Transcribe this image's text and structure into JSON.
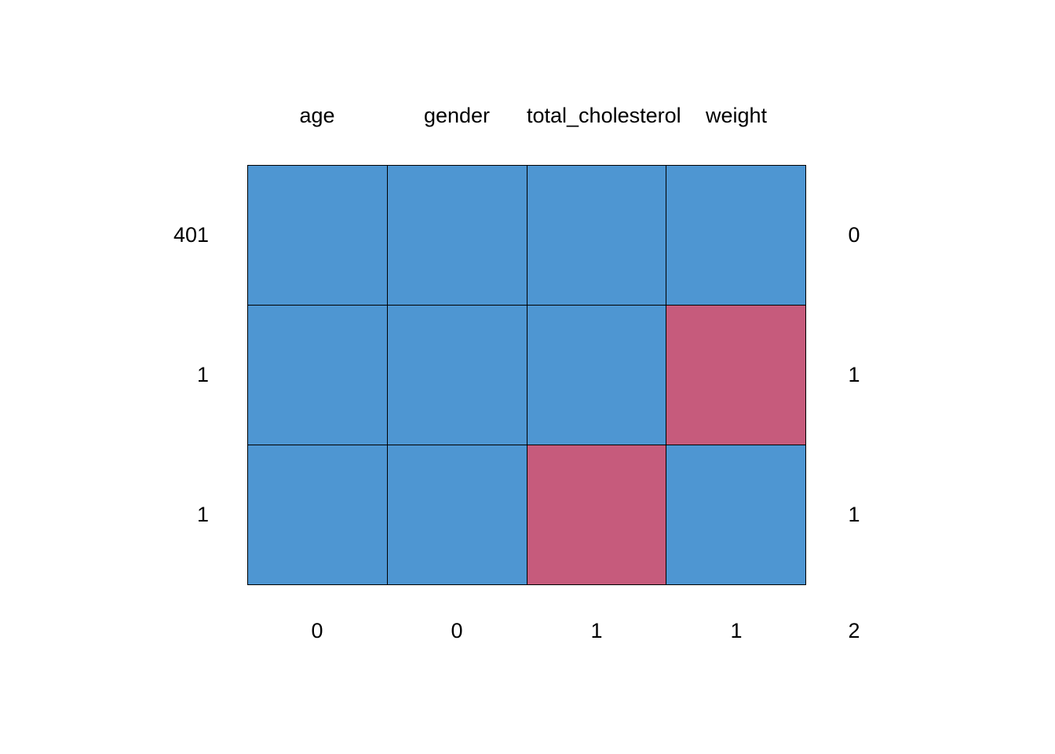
{
  "chart_data": {
    "type": "heatmap",
    "description": "missing-data-pattern-plot",
    "columns": [
      "age",
      "gender",
      "total_cholesterol",
      "weight"
    ],
    "pattern_rows": [
      {
        "left_count": "401",
        "cells": [
          1,
          1,
          1,
          1
        ],
        "right_count": "0"
      },
      {
        "left_count": "1",
        "cells": [
          1,
          1,
          1,
          0
        ],
        "right_count": "1"
      },
      {
        "left_count": "1",
        "cells": [
          1,
          1,
          0,
          1
        ],
        "right_count": "1"
      }
    ],
    "bottom_counts": [
      "0",
      "0",
      "1",
      "1"
    ],
    "bottom_total": "2",
    "legend": {
      "observed_value": 1,
      "missing_value": 0
    },
    "colors": {
      "observed": "#4E96D2",
      "missing": "#C65B7C",
      "border": "#000000",
      "background": "#FFFFFF"
    }
  }
}
